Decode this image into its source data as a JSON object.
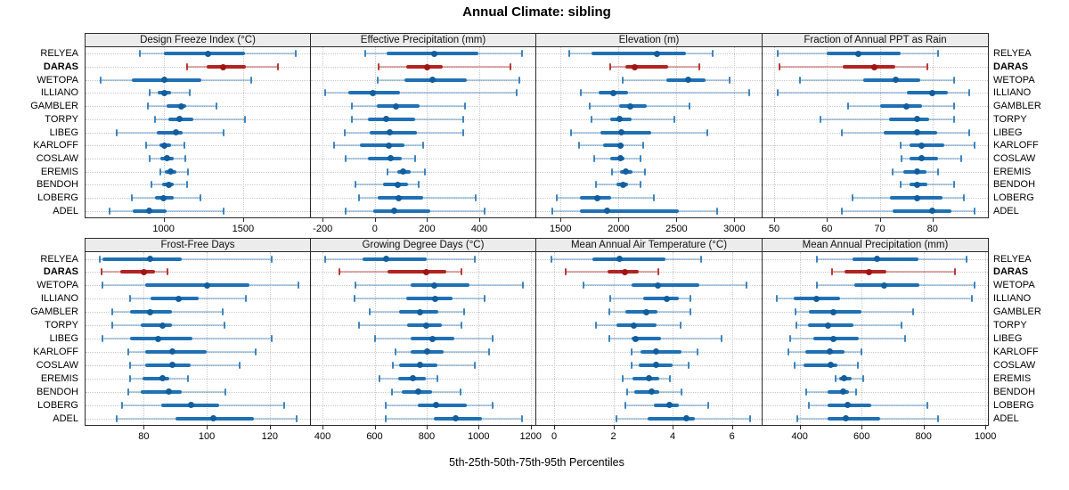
{
  "chart_data": {
    "type": "dot-whisker-trellis",
    "title": "Annual Climate: sibling",
    "caption": "5th-25th-50th-75th-95th Percentiles",
    "percentiles": [
      5,
      25,
      50,
      75,
      95
    ],
    "stations": [
      "RELYEA",
      "DARAS",
      "WETOPA",
      "ILLIANO",
      "GAMBLER",
      "TORPY",
      "LIBEG",
      "KARLOFF",
      "COSLAW",
      "EREMIS",
      "BENDOH",
      "LOBERG",
      "ADEL"
    ],
    "highlight_station": "DARAS",
    "legend_position": "none",
    "grid": "dotted",
    "colors": {
      "normal": "#1f71b4",
      "normal_dot": "#125d9c",
      "normal_faint": "rgba(31,113,180,0.32)",
      "normal_cap": "rgba(31,113,180,0.85)",
      "highlight": "#b22322",
      "highlight_dot": "#9c1714",
      "highlight_faint": "rgba(178,35,34,0.38)",
      "highlight_cap": "rgba(178,35,34,0.9)",
      "strip_bg": "#ececec",
      "border": "#2b2b2b",
      "gridline": "#c9c9c9"
    },
    "panels": [
      {
        "title": "Design Freeze Index (°C)",
        "xlim": [
          510,
          1920
        ],
        "ticks": [
          1000,
          1500
        ],
        "values": [
          [
            850,
            1000,
            1280,
            1510,
            1830
          ],
          [
            1150,
            1270,
            1375,
            1520,
            1720
          ],
          [
            605,
            800,
            1005,
            1240,
            1550
          ],
          [
            910,
            965,
            1005,
            1045,
            1165
          ],
          [
            900,
            1020,
            1110,
            1145,
            1330
          ],
          [
            945,
            1030,
            1100,
            1190,
            1510
          ],
          [
            705,
            955,
            1080,
            1120,
            1375
          ],
          [
            890,
            975,
            1005,
            1045,
            1130
          ],
          [
            910,
            980,
            1020,
            1065,
            1135
          ],
          [
            980,
            1010,
            1045,
            1080,
            1155
          ],
          [
            925,
            990,
            1035,
            1065,
            1145
          ],
          [
            800,
            945,
            1000,
            1065,
            1230
          ],
          [
            660,
            805,
            910,
            1020,
            1375
          ]
        ]
      },
      {
        "title": "Effective Precipitation (mm)",
        "xlim": [
          -245,
          615
        ],
        "ticks": [
          -200,
          0,
          200,
          400
        ],
        "values": [
          [
            -37,
            45,
            228,
            395,
            563
          ],
          [
            15,
            120,
            200,
            260,
            520
          ],
          [
            10,
            113,
            222,
            351,
            554
          ],
          [
            -192,
            -101,
            -9,
            98,
            543
          ],
          [
            -88,
            8,
            81,
            171,
            346
          ],
          [
            -88,
            -26,
            42,
            154,
            340
          ],
          [
            -116,
            -20,
            56,
            160,
            338
          ],
          [
            -158,
            -56,
            53,
            113,
            185
          ],
          [
            -113,
            -28,
            61,
            104,
            154
          ],
          [
            50,
            87,
            109,
            137,
            192
          ],
          [
            -74,
            30,
            89,
            128,
            169
          ],
          [
            -60,
            11,
            92,
            185,
            385
          ],
          [
            -113,
            -7,
            73,
            211,
            419
          ]
        ]
      },
      {
        "title": "Elevation (m)",
        "xlim": [
          1290,
          3235
        ],
        "ticks": [
          1500,
          2000,
          2500,
          3000
        ],
        "values": [
          [
            1575,
            1765,
            2330,
            2580,
            2810
          ],
          [
            1930,
            2055,
            2140,
            2425,
            2700
          ],
          [
            2035,
            2415,
            2600,
            2750,
            2960
          ],
          [
            1675,
            1825,
            1955,
            2080,
            3130
          ],
          [
            1750,
            2005,
            2100,
            2245,
            2615
          ],
          [
            1765,
            1930,
            2010,
            2110,
            2485
          ],
          [
            1590,
            1840,
            2025,
            2280,
            2765
          ],
          [
            1660,
            1870,
            2013,
            2045,
            2215
          ],
          [
            1790,
            1925,
            2018,
            2050,
            2190
          ],
          [
            1940,
            2013,
            2064,
            2120,
            2230
          ],
          [
            1805,
            1980,
            2038,
            2080,
            2190
          ],
          [
            1470,
            1670,
            1820,
            1940,
            2305
          ],
          [
            1425,
            1670,
            1903,
            2520,
            2852
          ]
        ]
      },
      {
        "title": "Fraction of Annual PPT as Rain",
        "xlim": [
          47.8,
          90.5
        ],
        "ticks": [
          50,
          60,
          70,
          80
        ],
        "values": [
          [
            50.7,
            60,
            66,
            74,
            81
          ],
          [
            51,
            63,
            69,
            73,
            79
          ],
          [
            54.8,
            66.8,
            73,
            77.7,
            84
          ],
          [
            50.7,
            75.2,
            80,
            83,
            87
          ],
          [
            64,
            70,
            75,
            78,
            84
          ],
          [
            58.7,
            71.8,
            77,
            79.4,
            84
          ],
          [
            62.8,
            70.8,
            77,
            80.8,
            87
          ],
          [
            74,
            75.7,
            78,
            82.2,
            88
          ],
          [
            74.2,
            75.6,
            78,
            81,
            85.4
          ],
          [
            72.5,
            74.5,
            77,
            78.8,
            81
          ],
          [
            74,
            75.6,
            77,
            79,
            84
          ],
          [
            64.8,
            71.9,
            77,
            81.9,
            86
          ],
          [
            62.8,
            72.4,
            80,
            83.6,
            88
          ]
        ]
      },
      {
        "title": "Frost-Free Days",
        "xlim": [
          61.5,
          132.8
        ],
        "ticks": [
          80,
          100,
          120
        ],
        "values": [
          [
            66,
            67,
            82,
            92,
            120.5
          ],
          [
            66.5,
            72.5,
            80,
            83.5,
            87.5
          ],
          [
            67,
            80.5,
            100,
            113.5,
            129
          ],
          [
            75.5,
            82,
            91,
            97.5,
            112.5
          ],
          [
            70,
            75.5,
            82,
            89,
            105
          ],
          [
            70,
            79,
            86,
            89,
            105.5
          ],
          [
            67,
            75.5,
            84.5,
            95.5,
            120.5
          ],
          [
            75,
            80.5,
            89,
            100,
            115.5
          ],
          [
            75.5,
            80.5,
            89,
            95,
            110.5
          ],
          [
            75.5,
            79.5,
            86,
            88,
            94
          ],
          [
            75,
            79,
            88,
            92,
            106
          ],
          [
            73,
            85.5,
            95,
            104,
            124.5
          ],
          [
            71.5,
            90,
            102,
            115,
            128.5
          ]
        ]
      },
      {
        "title": "Growing Degree Days (°C)",
        "xlim": [
          355,
          1218
        ],
        "ticks": [
          400,
          600,
          800,
          1000,
          1200
        ],
        "values": [
          [
            410,
            555,
            645,
            800,
            985
          ],
          [
            465,
            650,
            797,
            875,
            935
          ],
          [
            525,
            740,
            830,
            965,
            1170
          ],
          [
            522,
            720,
            833,
            900,
            1023
          ],
          [
            580,
            695,
            775,
            845,
            945
          ],
          [
            540,
            725,
            800,
            860,
            935
          ],
          [
            600,
            738,
            823,
            908,
            1055
          ],
          [
            680,
            738,
            802,
            865,
            1040
          ],
          [
            670,
            695,
            776,
            842,
            984
          ],
          [
            618,
            692,
            748,
            797,
            840
          ],
          [
            666,
            704,
            768,
            822,
            930
          ],
          [
            644,
            765,
            836,
            955,
            1055
          ],
          [
            644,
            828,
            912,
            1014,
            1165
          ]
        ]
      },
      {
        "title": "Mean Annual Air Temperature (°C)",
        "xlim": [
          -0.6,
          7.0
        ],
        "ticks": [
          0,
          2,
          4,
          6
        ],
        "values": [
          [
            -0.1,
            1.3,
            2.2,
            3.75,
            4.95
          ],
          [
            0.4,
            1.8,
            2.4,
            2.85,
            3.5
          ],
          [
            1.0,
            2.6,
            3.5,
            4.9,
            6.5
          ],
          [
            1.9,
            3.0,
            3.8,
            4.2,
            4.6
          ],
          [
            1.85,
            2.4,
            3.1,
            3.5,
            4.6
          ],
          [
            1.4,
            2.1,
            2.7,
            3.45,
            4.25
          ],
          [
            1.85,
            2.6,
            2.75,
            3.6,
            5.65
          ],
          [
            2.6,
            2.9,
            3.45,
            4.3,
            4.85
          ],
          [
            2.6,
            2.85,
            3.45,
            4.0,
            4.55
          ],
          [
            2.3,
            2.65,
            3.2,
            3.55,
            3.9
          ],
          [
            2.45,
            2.7,
            3.3,
            3.55,
            4.3
          ],
          [
            2.4,
            3.35,
            3.9,
            4.2,
            5.2
          ],
          [
            2.1,
            3.15,
            4.45,
            4.75,
            6.6
          ]
        ]
      },
      {
        "title": "Mean Annual Precipitation (mm)",
        "xlim": [
          280,
          1008
        ],
        "ticks": [
          400,
          600,
          800,
          1000
        ],
        "values": [
          [
            455,
            570,
            650,
            785,
            940
          ],
          [
            505,
            545,
            625,
            680,
            900
          ],
          [
            455,
            575,
            673,
            785,
            965
          ],
          [
            325,
            380,
            455,
            530,
            955
          ],
          [
            385,
            430,
            510,
            600,
            765
          ],
          [
            390,
            427,
            490,
            575,
            730
          ],
          [
            370,
            445,
            508,
            590,
            740
          ],
          [
            363,
            417,
            497,
            545,
            600
          ],
          [
            384,
            412,
            500,
            522,
            587
          ],
          [
            515,
            527,
            544,
            567,
            605
          ],
          [
            422,
            490,
            539,
            560,
            583
          ],
          [
            430,
            490,
            556,
            630,
            811
          ],
          [
            393,
            490,
            549,
            660,
            848
          ]
        ]
      }
    ]
  }
}
